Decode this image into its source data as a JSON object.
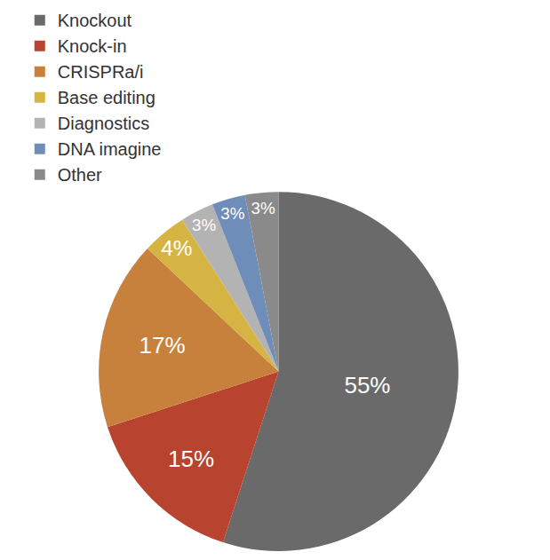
{
  "chart_data": {
    "type": "pie",
    "categories": [
      "Knockout",
      "Knock-in",
      "CRISPRa/i",
      "Base editing",
      "Diagnostics",
      "DNA imagine",
      "Other"
    ],
    "values": [
      55,
      15,
      17,
      4,
      3,
      3,
      3
    ],
    "value_labels": [
      "55%",
      "15%",
      "17%",
      "4%",
      "3%",
      "3%",
      "3%"
    ],
    "colors": [
      "#6a6a6a",
      "#b8432f",
      "#c8813c",
      "#d6b443",
      "#b3b3b3",
      "#6e8db8",
      "#8a8a8a"
    ],
    "legend": "top",
    "data_labels": true
  }
}
